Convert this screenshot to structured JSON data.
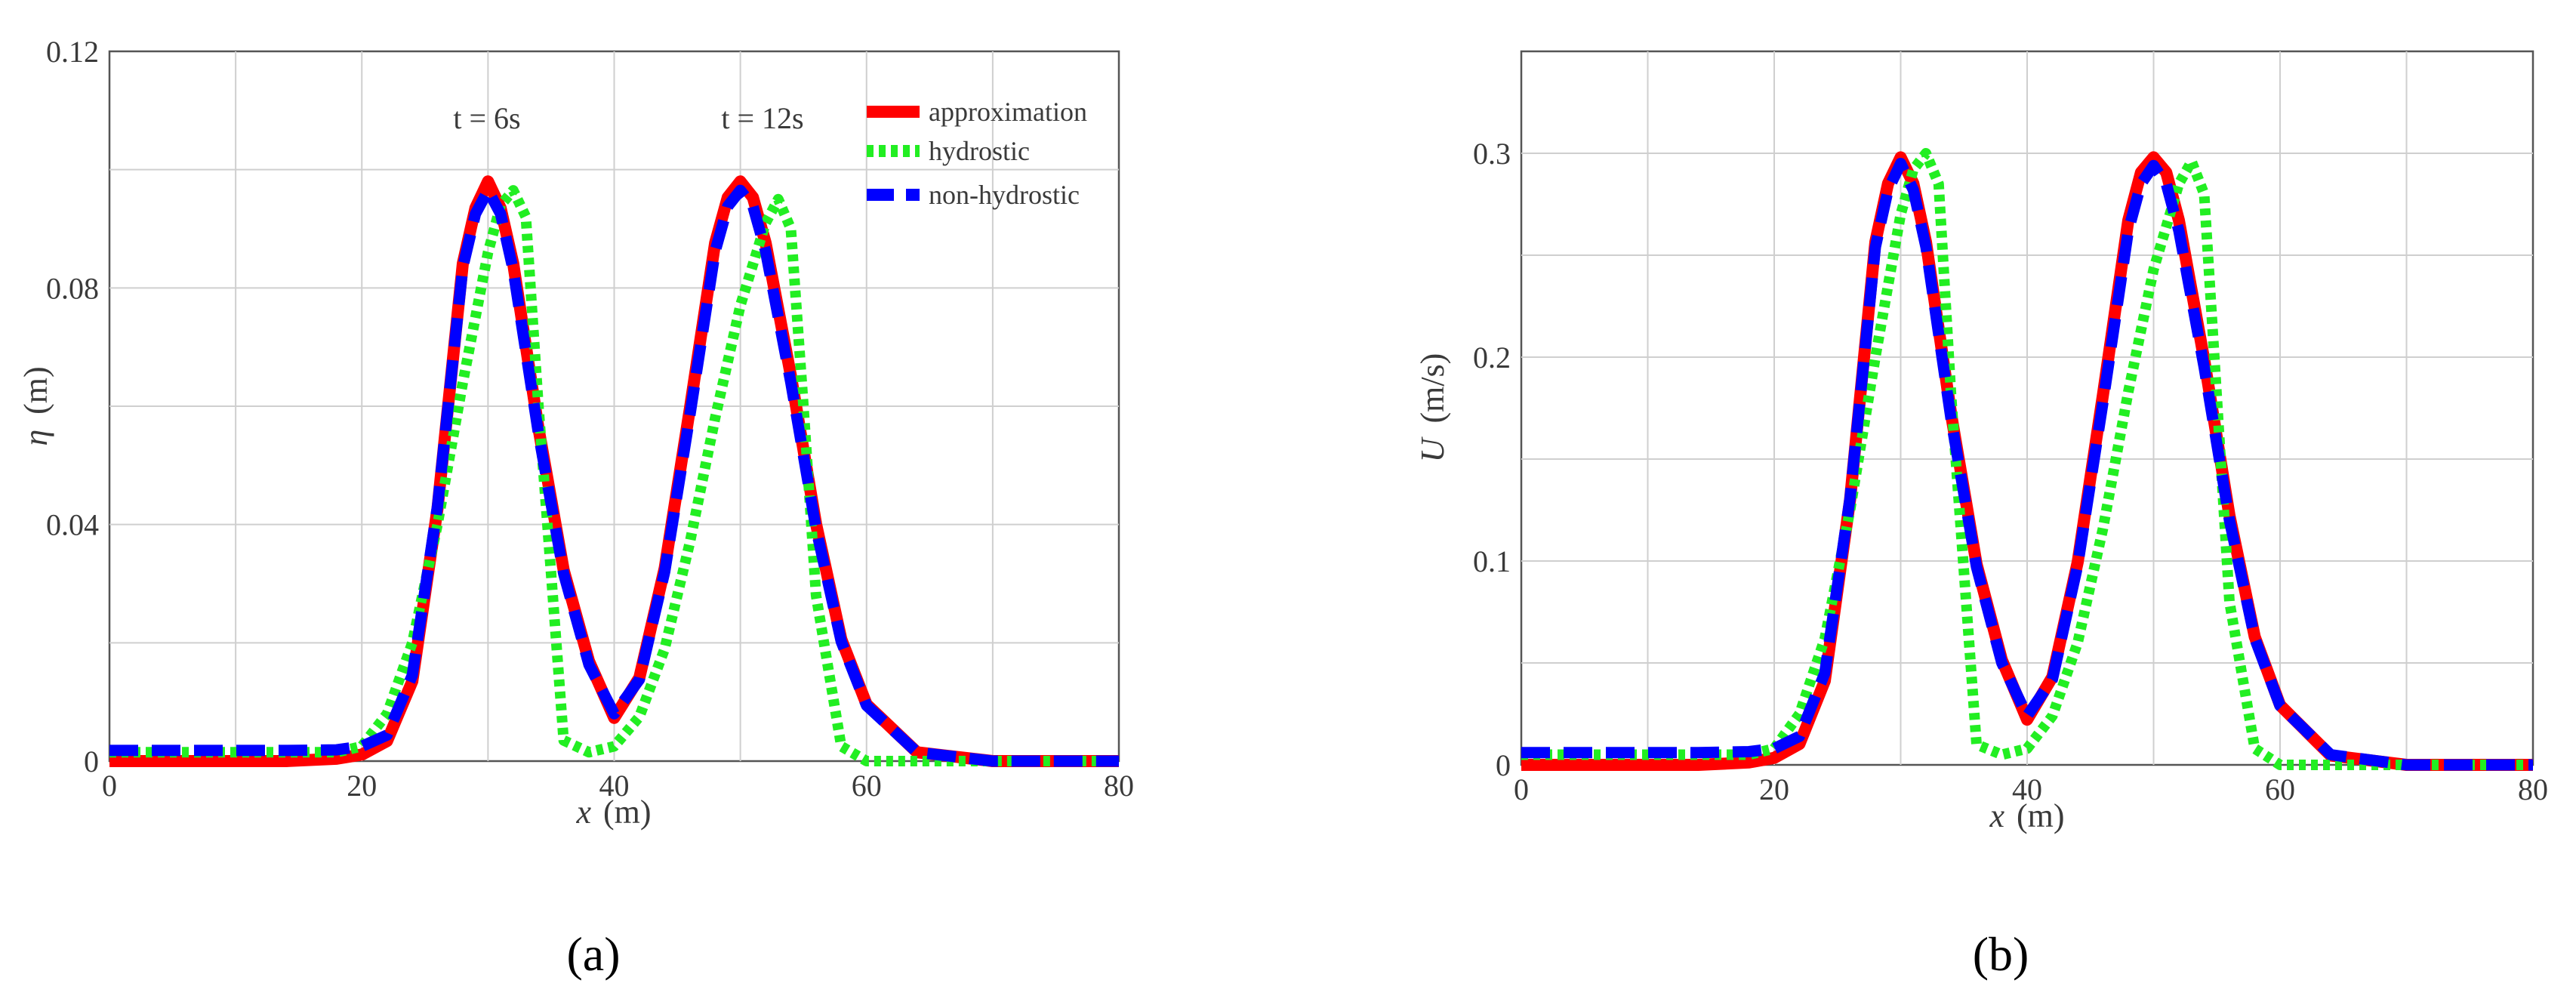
{
  "chart_data": [
    {
      "type": "line",
      "panel_caption": "(a)",
      "xlabel_symbol": "x",
      "xlabel_unit": "(m)",
      "ylabel_symbol": "η",
      "ylabel_unit": "(m)",
      "xlim": [
        0,
        80
      ],
      "ylim": [
        0,
        0.12
      ],
      "xticks": [
        0,
        20,
        40,
        60,
        80
      ],
      "yticks": [
        0,
        0.04,
        0.08,
        0.12
      ],
      "xtick_labels": [
        "0",
        "20",
        "40",
        "60",
        "80"
      ],
      "ytick_labels": [
        "0",
        "0.04",
        "0.08",
        "0.12"
      ],
      "grid": true,
      "legend_position": "top-right",
      "annotations": [
        {
          "text": "t = 6s",
          "x": 30,
          "y": 0.109
        },
        {
          "text": "t = 12s",
          "x": 50,
          "y": 0.109
        }
      ],
      "series": [
        {
          "name": "approximation",
          "color": "#ff0000",
          "style": "solid",
          "x": [
            0,
            14,
            18,
            20,
            22,
            24,
            26,
            28,
            29,
            30,
            31,
            32,
            34,
            36,
            38,
            40,
            42,
            44,
            46,
            48,
            49,
            50,
            51,
            52,
            54,
            56,
            58,
            60,
            64,
            70,
            80
          ],
          "y": [
            0,
            0,
            0.0004,
            0.0011,
            0.0034,
            0.0135,
            0.0427,
            0.0841,
            0.0935,
            0.098,
            0.0935,
            0.0841,
            0.0563,
            0.0323,
            0.0169,
            0.0073,
            0.0141,
            0.0326,
            0.0596,
            0.0876,
            0.0953,
            0.098,
            0.0953,
            0.0876,
            0.0652,
            0.0401,
            0.0206,
            0.0096,
            0.0015,
            0,
            0
          ]
        },
        {
          "name": "hydrostic",
          "color": "#22ee22",
          "style": "dotted",
          "x": [
            0,
            14,
            18,
            20,
            22,
            24,
            26,
            28,
            30,
            31,
            32,
            33,
            34,
            36,
            38,
            40,
            42,
            44,
            46,
            48,
            50,
            52,
            53,
            54,
            55,
            56,
            58,
            60,
            64,
            70,
            80
          ],
          "y": [
            0.0015,
            0.0015,
            0.0015,
            0.0025,
            0.008,
            0.02,
            0.04,
            0.064,
            0.086,
            0.094,
            0.0965,
            0.092,
            0.06,
            0.0035,
            0.0015,
            0.0025,
            0.0075,
            0.019,
            0.037,
            0.058,
            0.077,
            0.091,
            0.095,
            0.09,
            0.06,
            0.028,
            0.0025,
            0,
            0,
            0,
            0
          ]
        },
        {
          "name": "non-hydrostic",
          "color": "#0000ff",
          "style": "dashed",
          "x": [
            0,
            14,
            18,
            20,
            22,
            24,
            26,
            28,
            29,
            30,
            31,
            32,
            34,
            36,
            38,
            40,
            42,
            44,
            46,
            48,
            49,
            50,
            51,
            52,
            54,
            56,
            58,
            60,
            64,
            70,
            80
          ],
          "y": [
            0.0018,
            0.0018,
            0.0019,
            0.0025,
            0.0044,
            0.0145,
            0.0431,
            0.0835,
            0.0925,
            0.0965,
            0.0925,
            0.083,
            0.0554,
            0.0317,
            0.0163,
            0.008,
            0.0138,
            0.032,
            0.0585,
            0.0862,
            0.0938,
            0.0965,
            0.0938,
            0.0862,
            0.064,
            0.0393,
            0.0202,
            0.0094,
            0.0015,
            0,
            0
          ]
        }
      ]
    },
    {
      "type": "line",
      "panel_caption": "(b)",
      "xlabel_symbol": "x",
      "xlabel_unit": "(m)",
      "ylabel_symbol": "U",
      "ylabel_unit": "(m/s)",
      "xlim": [
        0,
        80
      ],
      "ylim": [
        0,
        0.35
      ],
      "xticks": [
        0,
        20,
        40,
        60,
        80
      ],
      "yticks": [
        0,
        0.1,
        0.2,
        0.3
      ],
      "xtick_labels": [
        "0",
        "20",
        "40",
        "60",
        "80"
      ],
      "ytick_labels": [
        "0",
        "0.1",
        "0.2",
        "0.3"
      ],
      "grid": true,
      "series": [
        {
          "name": "approximation",
          "color": "#ff0000",
          "style": "solid",
          "x": [
            0,
            14,
            18,
            20,
            22,
            24,
            26,
            28,
            29,
            30,
            31,
            32,
            34,
            36,
            38,
            40,
            42,
            44,
            46,
            48,
            49,
            50,
            51,
            52,
            54,
            56,
            58,
            60,
            64,
            70,
            80
          ],
          "y": [
            0,
            0,
            0.0012,
            0.0034,
            0.0103,
            0.0412,
            0.1301,
            0.2565,
            0.2852,
            0.298,
            0.2852,
            0.2565,
            0.1716,
            0.0985,
            0.0515,
            0.0222,
            0.0432,
            0.0995,
            0.1817,
            0.2671,
            0.2906,
            0.298,
            0.2906,
            0.2671,
            0.1988,
            0.1223,
            0.0628,
            0.0293,
            0.0046,
            0,
            0
          ]
        },
        {
          "name": "hydrostic",
          "color": "#22ee22",
          "style": "dotted",
          "x": [
            0,
            14,
            18,
            20,
            22,
            24,
            26,
            28,
            30,
            31,
            32,
            33,
            34,
            36,
            38,
            40,
            42,
            44,
            46,
            48,
            50,
            52,
            53,
            54,
            55,
            56,
            58,
            60,
            64,
            70,
            80
          ],
          "y": [
            0.005,
            0.005,
            0.005,
            0.008,
            0.025,
            0.062,
            0.125,
            0.2,
            0.27,
            0.292,
            0.3,
            0.285,
            0.18,
            0.01,
            0.005,
            0.008,
            0.024,
            0.06,
            0.116,
            0.183,
            0.243,
            0.285,
            0.296,
            0.28,
            0.18,
            0.08,
            0.008,
            0,
            0,
            0,
            0
          ]
        },
        {
          "name": "non-hydrostic",
          "color": "#0000ff",
          "style": "dashed",
          "x": [
            0,
            14,
            18,
            20,
            22,
            24,
            26,
            28,
            29,
            30,
            31,
            32,
            34,
            36,
            38,
            40,
            42,
            44,
            46,
            48,
            49,
            50,
            51,
            52,
            54,
            56,
            58,
            60,
            64,
            70,
            80
          ],
          "y": [
            0.006,
            0.006,
            0.0065,
            0.008,
            0.014,
            0.045,
            0.131,
            0.254,
            0.282,
            0.295,
            0.282,
            0.254,
            0.169,
            0.097,
            0.05,
            0.024,
            0.042,
            0.098,
            0.178,
            0.262,
            0.285,
            0.294,
            0.285,
            0.262,
            0.195,
            0.12,
            0.062,
            0.029,
            0.005,
            0,
            0
          ]
        }
      ]
    }
  ]
}
